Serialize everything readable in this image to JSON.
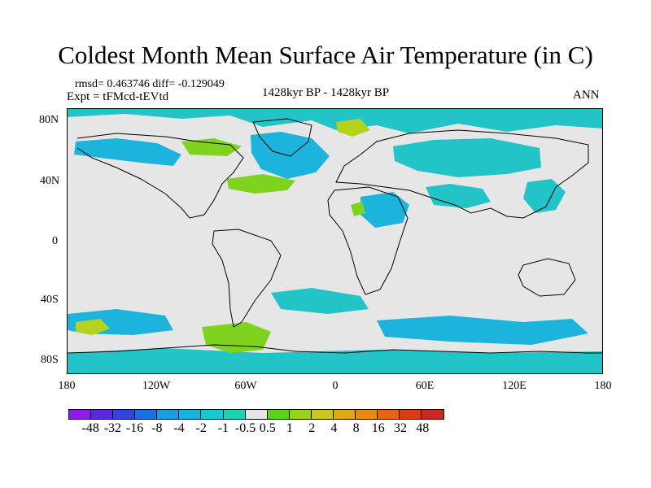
{
  "title": "Coldest Month Mean Surface Air Temperature (in C)",
  "stats_text": "rmsd= 0.463746  diff= -0.129049",
  "expt_text": "Expt = tFMcd-tEVtd",
  "period_text": "1428kyr BP - 1428kyr BP",
  "season_text": "ANN",
  "y_ticks": [
    "80N",
    "40N",
    "0",
    "40S",
    "80S"
  ],
  "x_ticks": [
    "180",
    "120W",
    "60W",
    "0",
    "60E",
    "120E",
    "180"
  ],
  "colorbar": {
    "labels": [
      "-48",
      "-32",
      "-16",
      "-8",
      "-4",
      "-2",
      "-1",
      "-0.5",
      "0.5",
      "1",
      "2",
      "4",
      "8",
      "16",
      "32",
      "48"
    ],
    "colors": [
      "#8a1ee6",
      "#5a28dc",
      "#2e46dc",
      "#1e6edc",
      "#1c9cdc",
      "#16b6dc",
      "#18c8d2",
      "#1ed2b4",
      "#e6e6e6",
      "#5cd21e",
      "#96d21e",
      "#c8c81e",
      "#dcaa16",
      "#e68c16",
      "#e66414",
      "#dc3c14",
      "#c8281e"
    ]
  },
  "map": {
    "background_color": "#e6e6e6",
    "cool_color": "#22c4c8",
    "cooler_color": "#1cb4dc",
    "warm_color": "#7ed31e",
    "warmer_color": "#b4d21e",
    "coast_color": "#000000"
  }
}
